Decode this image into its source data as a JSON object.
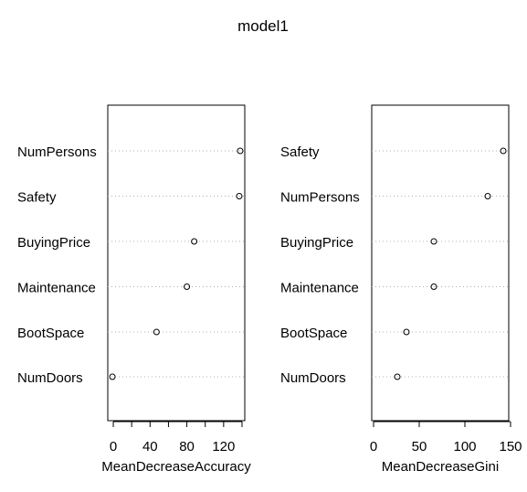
{
  "title": "model1",
  "chart_data": [
    {
      "type": "scatter",
      "variant": "dotchart",
      "xlabel": "MeanDecreaseAccuracy",
      "ylabel": "",
      "categories": [
        "NumPersons",
        "Safety",
        "BuyingPrice",
        "Maintenance",
        "BootSpace",
        "NumDoors"
      ],
      "values": [
        138,
        137,
        88,
        80,
        47,
        -1
      ],
      "xlim": [
        -6,
        143
      ],
      "xticks": [
        0,
        20,
        40,
        60,
        80,
        100,
        120,
        140
      ],
      "xticklabels": [
        "0",
        "",
        "40",
        "",
        "80",
        "",
        "120",
        ""
      ],
      "grid": "dotted horizontal guide lines"
    },
    {
      "type": "scatter",
      "variant": "dotchart",
      "xlabel": "MeanDecreaseGini",
      "ylabel": "",
      "categories": [
        "Safety",
        "NumPersons",
        "BuyingPrice",
        "Maintenance",
        "BootSpace",
        "NumDoors"
      ],
      "values": [
        142,
        125,
        66,
        66,
        36,
        26
      ],
      "xlim": [
        -2,
        148
      ],
      "xticks": [
        0,
        50,
        100,
        150
      ],
      "xticklabels": [
        "0",
        "50",
        "100",
        "150"
      ],
      "grid": "dotted horizontal guide lines"
    }
  ]
}
